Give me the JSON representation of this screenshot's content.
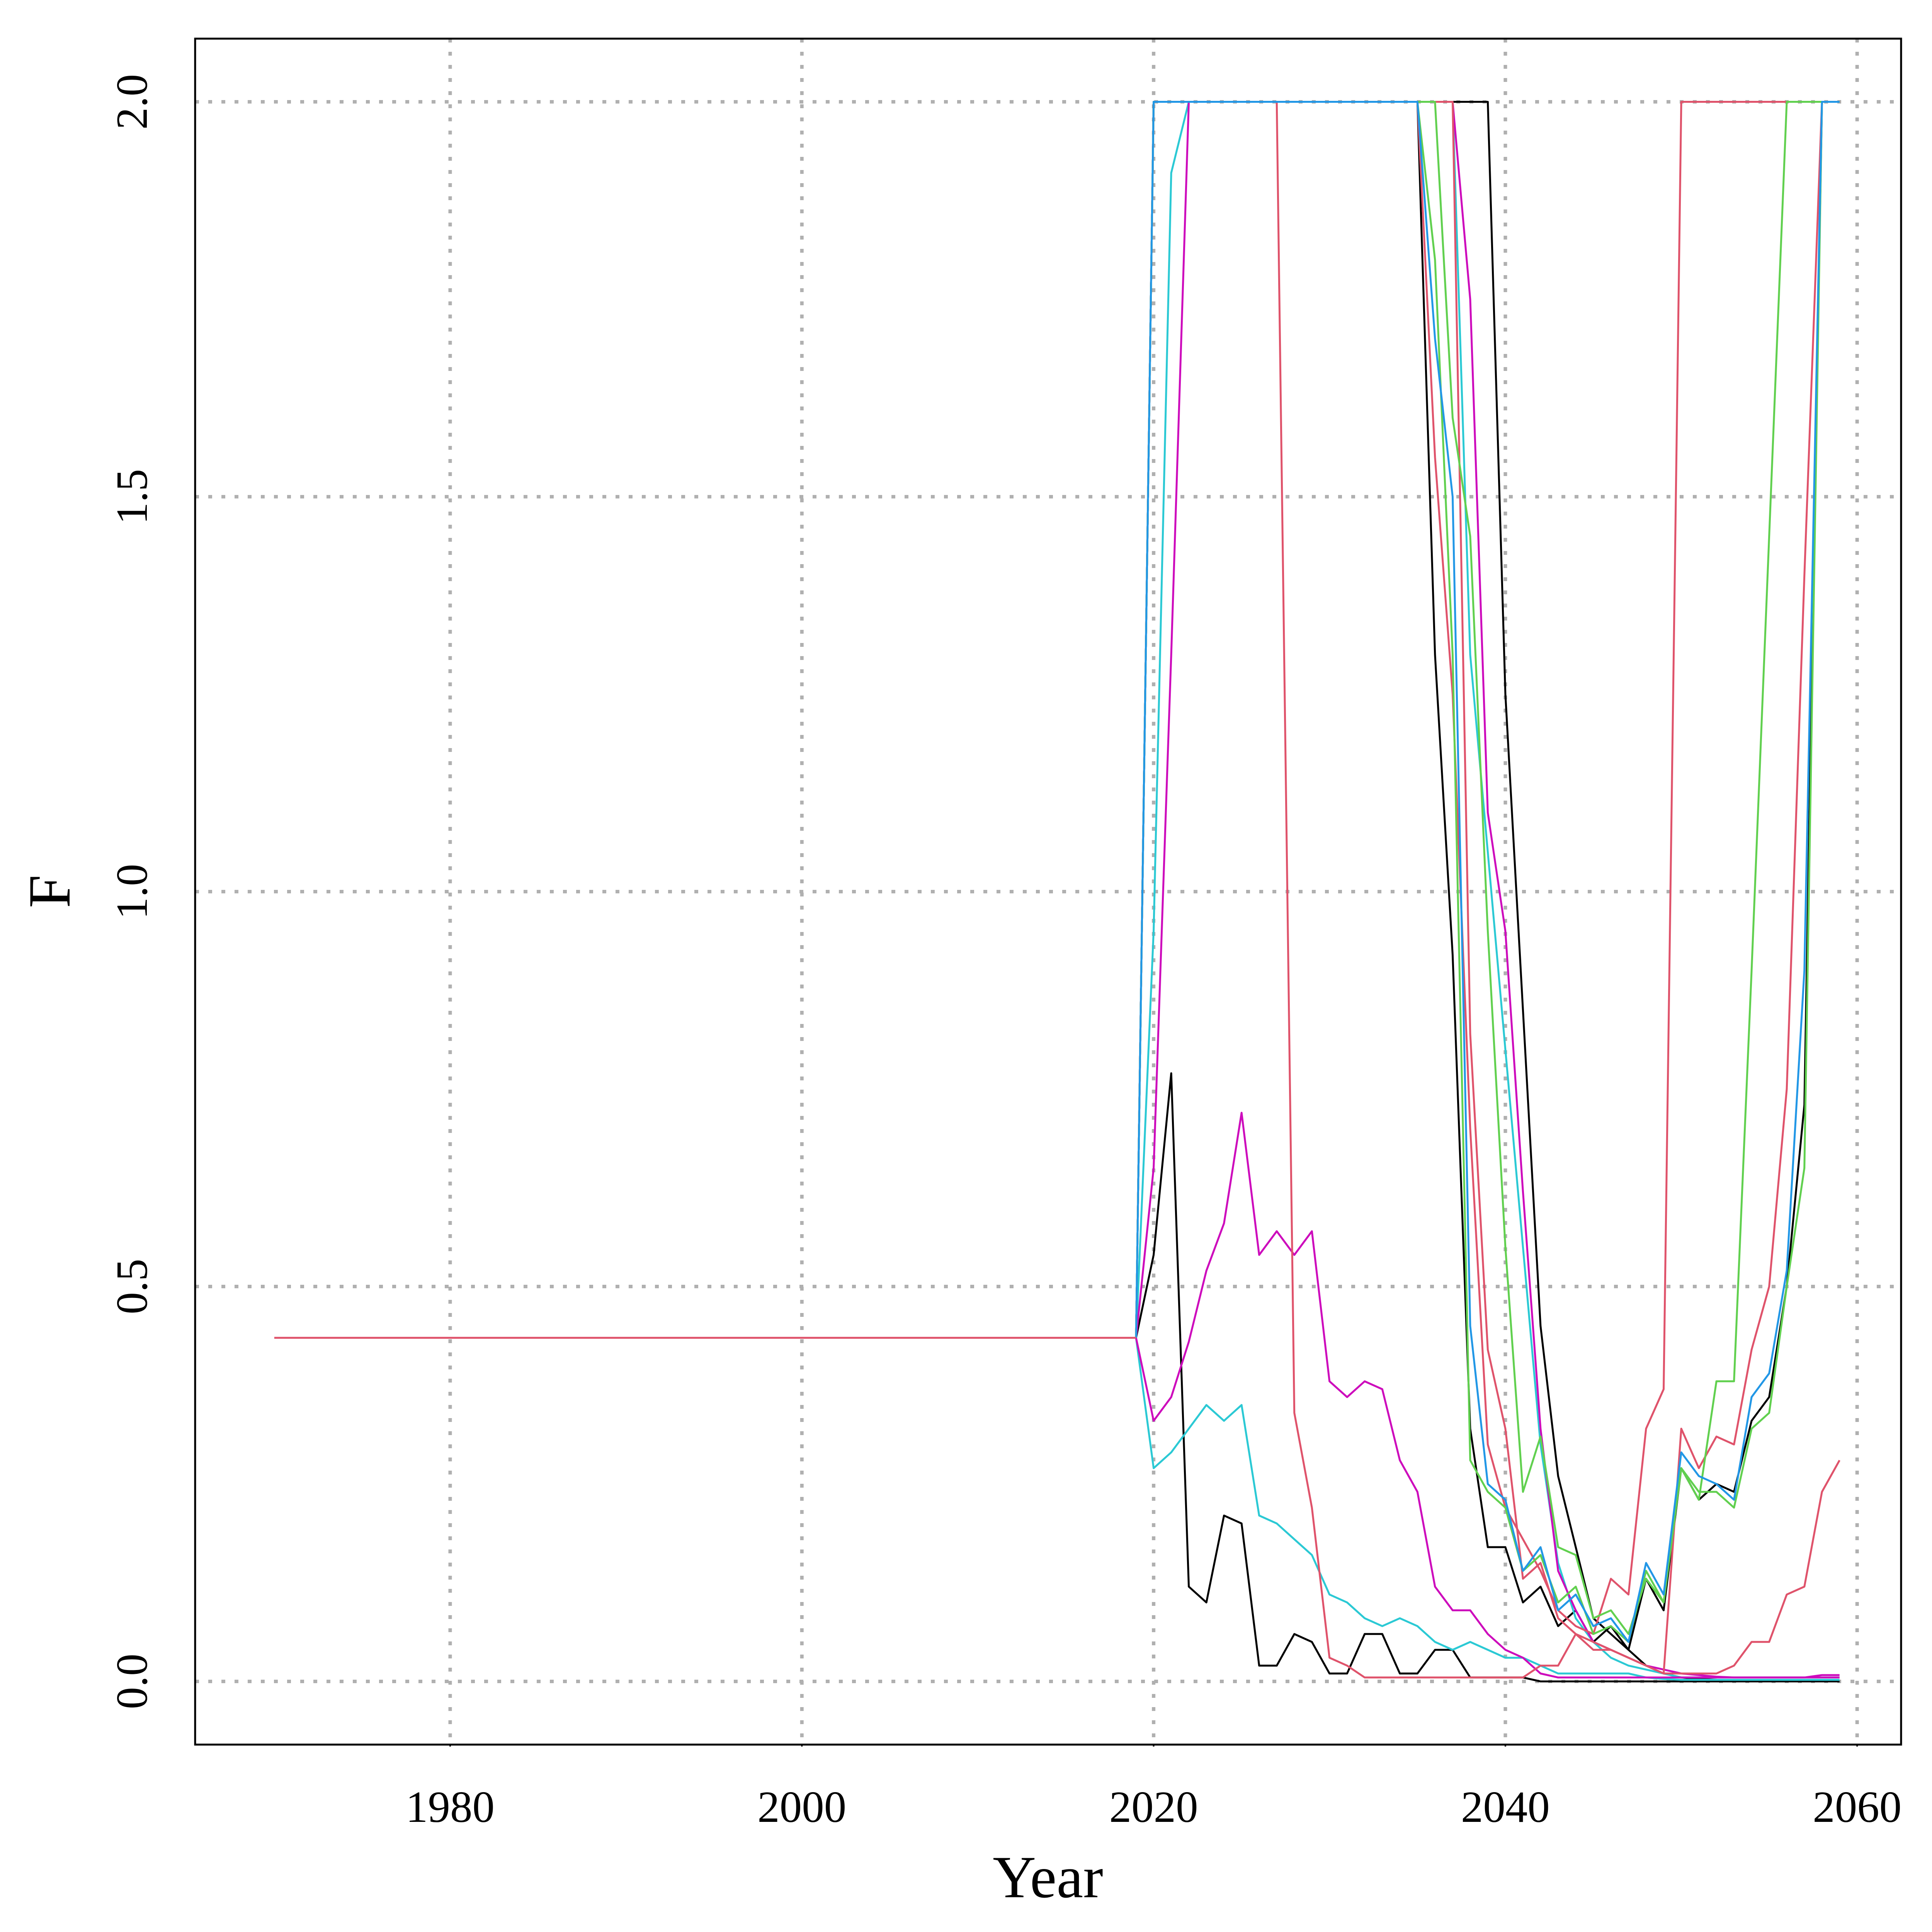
{
  "chart_data": {
    "type": "line",
    "title": "",
    "xlabel": "Year",
    "ylabel": "F",
    "xlim": [
      1965.5,
      2062.5
    ],
    "ylim": [
      -0.08,
      2.08
    ],
    "x_ticks": [
      1980,
      2000,
      2020,
      2040,
      2060
    ],
    "y_ticks": [
      0.0,
      0.5,
      1.0,
      1.5,
      2.0
    ],
    "x_tick_labels": [
      "1980",
      "2000",
      "2020",
      "2040",
      "2060"
    ],
    "y_tick_labels": [
      "0.0",
      "0.5",
      "1.0",
      "1.5",
      "2.0"
    ],
    "grid": true,
    "legend": "none",
    "historical": {
      "color": "#df536b",
      "x": [
        1970,
        2019
      ],
      "values": [
        0.435,
        0.435
      ]
    },
    "series": [
      {
        "color": "#000000",
        "x": [
          2019,
          2020,
          2021,
          2022,
          2023,
          2024,
          2025,
          2026,
          2027,
          2028,
          2029,
          2030,
          2031,
          2032,
          2033,
          2034,
          2035,
          2036,
          2037,
          2038,
          2039,
          2040,
          2041,
          2042,
          2043,
          2044,
          2045,
          2046,
          2047,
          2048,
          2049,
          2050,
          2051,
          2052,
          2053,
          2054,
          2055,
          2056,
          2057,
          2058,
          2059
        ],
        "values": [
          0.435,
          0.54,
          0.77,
          0.12,
          0.1,
          0.21,
          0.2,
          0.02,
          0.02,
          0.06,
          0.05,
          0.01,
          0.01,
          0.06,
          0.06,
          0.01,
          0.01,
          0.04,
          0.04,
          0.005,
          0.005,
          0.005,
          0.005,
          0,
          0,
          0,
          0,
          0,
          0,
          0,
          0,
          0,
          0,
          0,
          0,
          0,
          0,
          0,
          0,
          0,
          0
        ]
      },
      {
        "color": "#000000",
        "x": [
          2019,
          2020,
          2021,
          2022,
          2023,
          2024,
          2025,
          2026,
          2027,
          2028,
          2029,
          2030,
          2031,
          2032,
          2033,
          2034,
          2035,
          2036,
          2037,
          2038,
          2039,
          2040,
          2041,
          2042,
          2043,
          2044,
          2045,
          2046,
          2047,
          2048,
          2049,
          2050,
          2051,
          2052,
          2053,
          2054,
          2055,
          2056,
          2057,
          2058,
          2059
        ],
        "values": [
          0.435,
          2,
          2,
          2,
          2,
          2,
          2,
          2,
          2,
          2,
          2,
          2,
          2,
          2,
          2,
          2,
          2,
          1.3,
          0.92,
          0.32,
          0.17,
          0.17,
          0.1,
          0.12,
          0.07,
          0.09,
          0.05,
          0.07,
          0.04,
          0.13,
          0.09,
          0.27,
          0.23,
          0.25,
          0.24,
          0.33,
          0.36,
          0.5,
          0.73,
          2,
          2
        ]
      },
      {
        "color": "#000000",
        "x": [
          2019,
          2020,
          2021,
          2022,
          2023,
          2024,
          2025,
          2026,
          2027,
          2028,
          2029,
          2030,
          2031,
          2032,
          2033,
          2034,
          2035,
          2036,
          2037,
          2038,
          2039,
          2040,
          2041,
          2042,
          2043,
          2044,
          2045,
          2046,
          2047,
          2048,
          2049,
          2050,
          2051,
          2052,
          2053,
          2054,
          2055,
          2056,
          2057,
          2058,
          2059
        ],
        "values": [
          0.435,
          2,
          2,
          2,
          2,
          2,
          2,
          2,
          2,
          2,
          2,
          2,
          2,
          2,
          2,
          2,
          2,
          2,
          2,
          2,
          2,
          1.25,
          0.85,
          0.45,
          0.26,
          0.17,
          0.08,
          0.06,
          0.04,
          0.02,
          0.01,
          0.005,
          0.003,
          0.002,
          0.001,
          0,
          0,
          0,
          0,
          0,
          0
        ]
      },
      {
        "color": "#2bc9d4",
        "x": [
          2019,
          2020,
          2021,
          2022,
          2023,
          2024,
          2025,
          2026,
          2027,
          2028,
          2029,
          2030,
          2031,
          2032,
          2033,
          2034,
          2035,
          2036,
          2037,
          2038,
          2039,
          2040,
          2041,
          2042,
          2043,
          2044,
          2045,
          2046,
          2047,
          2048,
          2049,
          2050,
          2051,
          2052,
          2053,
          2054,
          2055,
          2056,
          2057,
          2058,
          2059
        ],
        "values": [
          0.435,
          0.27,
          0.29,
          0.32,
          0.35,
          0.33,
          0.35,
          0.21,
          0.2,
          0.18,
          0.16,
          0.11,
          0.1,
          0.08,
          0.07,
          0.08,
          0.07,
          0.05,
          0.04,
          0.05,
          0.04,
          0.03,
          0.03,
          0.02,
          0.01,
          0.01,
          0.01,
          0.01,
          0.01,
          0.005,
          0.003,
          0.002,
          0.002,
          0.002,
          0.002,
          0.002,
          0.002,
          0.002,
          0.002,
          0.002,
          0.002
        ]
      },
      {
        "color": "#2bc9d4",
        "x": [
          2019,
          2020,
          2021,
          2022,
          2023,
          2024,
          2025,
          2026,
          2027,
          2028,
          2029,
          2030,
          2031,
          2032,
          2033,
          2034,
          2035,
          2036,
          2037,
          2038,
          2039,
          2040,
          2041,
          2042,
          2043,
          2044,
          2045,
          2046,
          2047,
          2048,
          2049,
          2050,
          2051,
          2052,
          2053,
          2054,
          2055,
          2056,
          2057,
          2058,
          2059
        ],
        "values": [
          0.435,
          0.95,
          1.91,
          2,
          2,
          2,
          2,
          2,
          2,
          2,
          2,
          2,
          2,
          2,
          2,
          2,
          2,
          2,
          2,
          1.3,
          1.05,
          0.8,
          0.55,
          0.3,
          0.15,
          0.08,
          0.05,
          0.03,
          0.02,
          0.015,
          0.01,
          0.005,
          0.005,
          0.005,
          0.005,
          0.005,
          0.005,
          0.005,
          0.005,
          0.005,
          0.005
        ]
      },
      {
        "color": "#cd0bbc",
        "x": [
          2019,
          2020,
          2021,
          2022,
          2023,
          2024,
          2025,
          2026,
          2027,
          2028,
          2029,
          2030,
          2031,
          2032,
          2033,
          2034,
          2035,
          2036,
          2037,
          2038,
          2039,
          2040,
          2041,
          2042,
          2043,
          2044,
          2045,
          2046,
          2047,
          2048,
          2049,
          2050,
          2051,
          2052,
          2053,
          2054,
          2055,
          2056,
          2057,
          2058,
          2059
        ],
        "values": [
          0.435,
          0.33,
          0.36,
          0.43,
          0.52,
          0.58,
          0.72,
          0.54,
          0.57,
          0.54,
          0.57,
          0.38,
          0.36,
          0.38,
          0.37,
          0.28,
          0.24,
          0.12,
          0.09,
          0.09,
          0.06,
          0.04,
          0.03,
          0.01,
          0.005,
          0.005,
          0.005,
          0.005,
          0.005,
          0.005,
          0.005,
          0.005,
          0.005,
          0.005,
          0.005,
          0.005,
          0.005,
          0.005,
          0.005,
          0.008,
          0.008
        ]
      },
      {
        "color": "#cd0bbc",
        "x": [
          2019,
          2020,
          2021,
          2022,
          2023,
          2024,
          2025,
          2026,
          2027,
          2028,
          2029,
          2030,
          2031,
          2032,
          2033,
          2034,
          2035,
          2036,
          2037,
          2038,
          2039,
          2040,
          2041,
          2042,
          2043,
          2044,
          2045,
          2046,
          2047,
          2048,
          2049,
          2050,
          2051,
          2052,
          2053,
          2054,
          2055,
          2056,
          2057,
          2058,
          2059
        ],
        "values": [
          0.435,
          0.65,
          1.3,
          2,
          2,
          2,
          2,
          2,
          2,
          2,
          2,
          2,
          2,
          2,
          2,
          2,
          2,
          2,
          2,
          1.75,
          1.1,
          0.95,
          0.62,
          0.32,
          0.14,
          0.09,
          0.05,
          0.04,
          0.03,
          0.02,
          0.015,
          0.01,
          0.008,
          0.006,
          0.005,
          0.005,
          0.005,
          0.005,
          0.005,
          0.005,
          0.005
        ]
      },
      {
        "color": "#df536b",
        "x": [
          2019,
          2020,
          2021,
          2022,
          2023,
          2024,
          2025,
          2026,
          2027,
          2028,
          2029,
          2030,
          2031,
          2032,
          2033,
          2034,
          2035,
          2036,
          2037,
          2038,
          2039,
          2040,
          2041,
          2042,
          2043,
          2044,
          2045,
          2046,
          2047,
          2048,
          2049,
          2050,
          2051,
          2052,
          2053,
          2054,
          2055,
          2056,
          2057,
          2058,
          2059
        ],
        "values": [
          0.435,
          2,
          2,
          2,
          2,
          2,
          2,
          2,
          2,
          0.34,
          0.22,
          0.03,
          0.02,
          0.005,
          0.005,
          0.005,
          0.005,
          0.005,
          0.005,
          0.005,
          0.005,
          0.005,
          0.005,
          0.02,
          0.02,
          0.06,
          0.05,
          0.04,
          0.03,
          0.02,
          0.01,
          0.01,
          0.01,
          0.01,
          0.02,
          0.05,
          0.05,
          0.11,
          0.12,
          0.24,
          0.28
        ]
      },
      {
        "color": "#df536b",
        "x": [
          2019,
          2020,
          2021,
          2022,
          2023,
          2024,
          2025,
          2026,
          2027,
          2028,
          2029,
          2030,
          2031,
          2032,
          2033,
          2034,
          2035,
          2036,
          2037,
          2038,
          2039,
          2040,
          2041,
          2042,
          2043,
          2044,
          2045,
          2046,
          2047,
          2048,
          2049,
          2050,
          2051,
          2052,
          2053,
          2054,
          2055,
          2056,
          2057,
          2058,
          2059
        ],
        "values": [
          0.435,
          2,
          2,
          2,
          2,
          2,
          2,
          2,
          2,
          2,
          2,
          2,
          2,
          2,
          2,
          2,
          2,
          1.55,
          1.25,
          0.7,
          0.3,
          0.22,
          0.18,
          0.14,
          0.09,
          0.07,
          0.06,
          0.13,
          0.11,
          0.32,
          0.37,
          2,
          2,
          2,
          2,
          2,
          2,
          2,
          2,
          2,
          2
        ]
      },
      {
        "color": "#df536b",
        "x": [
          2019,
          2020,
          2021,
          2022,
          2023,
          2024,
          2025,
          2026,
          2027,
          2028,
          2029,
          2030,
          2031,
          2032,
          2033,
          2034,
          2035,
          2036,
          2037,
          2038,
          2039,
          2040,
          2041,
          2042,
          2043,
          2044,
          2045,
          2046,
          2047,
          2048,
          2049,
          2050,
          2051,
          2052,
          2053,
          2054,
          2055,
          2056,
          2057,
          2058,
          2059
        ],
        "values": [
          0.435,
          2,
          2,
          2,
          2,
          2,
          2,
          2,
          2,
          2,
          2,
          2,
          2,
          2,
          2,
          2,
          2,
          2,
          2,
          0.82,
          0.42,
          0.32,
          0.13,
          0.15,
          0.08,
          0.06,
          0.04,
          0.04,
          0.03,
          0.02,
          0.01,
          0.32,
          0.27,
          0.31,
          0.3,
          0.42,
          0.5,
          0.75,
          1.4,
          2,
          2
        ]
      },
      {
        "color": "#61d04f",
        "x": [
          2019,
          2020,
          2021,
          2022,
          2023,
          2024,
          2025,
          2026,
          2027,
          2028,
          2029,
          2030,
          2031,
          2032,
          2033,
          2034,
          2035,
          2036,
          2037,
          2038,
          2039,
          2040,
          2041,
          2042,
          2043,
          2044,
          2045,
          2046,
          2047,
          2048,
          2049,
          2050,
          2051,
          2052,
          2053,
          2054,
          2055,
          2056,
          2057,
          2058,
          2059
        ],
        "values": [
          0.435,
          2,
          2,
          2,
          2,
          2,
          2,
          2,
          2,
          2,
          2,
          2,
          2,
          2,
          2,
          2,
          2,
          2,
          1.6,
          1.45,
          0.95,
          0.55,
          0.24,
          0.31,
          0.17,
          0.16,
          0.08,
          0.09,
          0.06,
          0.13,
          0.1,
          0.27,
          0.23,
          0.38,
          0.38,
          0.9,
          1.45,
          2,
          2,
          2,
          2
        ]
      },
      {
        "color": "#61d04f",
        "x": [
          2019,
          2020,
          2021,
          2022,
          2023,
          2024,
          2025,
          2026,
          2027,
          2028,
          2029,
          2030,
          2031,
          2032,
          2033,
          2034,
          2035,
          2036,
          2037,
          2038,
          2039,
          2040,
          2041,
          2042,
          2043,
          2044,
          2045,
          2046,
          2047,
          2048,
          2049,
          2050,
          2051,
          2052,
          2053,
          2054,
          2055,
          2056,
          2057,
          2058,
          2059
        ],
        "values": [
          0.435,
          2,
          2,
          2,
          2,
          2,
          2,
          2,
          2,
          2,
          2,
          2,
          2,
          2,
          2,
          2,
          2,
          1.8,
          1.3,
          0.28,
          0.24,
          0.22,
          0.14,
          0.16,
          0.1,
          0.12,
          0.06,
          0.07,
          0.05,
          0.14,
          0.1,
          0.27,
          0.24,
          0.24,
          0.22,
          0.32,
          0.34,
          0.5,
          0.65,
          2,
          2
        ]
      },
      {
        "color": "#2297e6",
        "x": [
          2019,
          2020,
          2021,
          2022,
          2023,
          2024,
          2025,
          2026,
          2027,
          2028,
          2029,
          2030,
          2031,
          2032,
          2033,
          2034,
          2035,
          2036,
          2037,
          2038,
          2039,
          2040,
          2041,
          2042,
          2043,
          2044,
          2045,
          2046,
          2047,
          2048,
          2049,
          2050,
          2051,
          2052,
          2053,
          2054,
          2055,
          2056,
          2057,
          2058,
          2059
        ],
        "values": [
          0.435,
          2,
          2,
          2,
          2,
          2,
          2,
          2,
          2,
          2,
          2,
          2,
          2,
          2,
          2,
          2,
          2,
          1.7,
          1.5,
          0.45,
          0.25,
          0.23,
          0.14,
          0.17,
          0.09,
          0.11,
          0.07,
          0.08,
          0.05,
          0.15,
          0.11,
          0.29,
          0.26,
          0.25,
          0.23,
          0.36,
          0.39,
          0.52,
          0.9,
          2,
          2
        ]
      }
    ]
  }
}
